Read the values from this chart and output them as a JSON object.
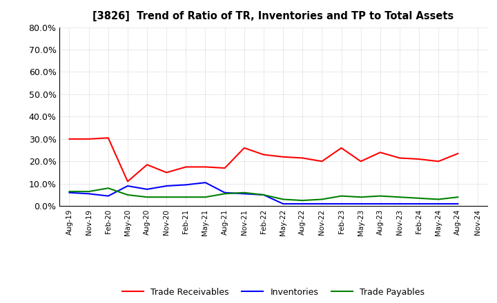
{
  "title": "[3826]  Trend of Ratio of TR, Inventories and TP to Total Assets",
  "labels": [
    "Aug-19",
    "Nov-19",
    "Feb-20",
    "May-20",
    "Aug-20",
    "Nov-20",
    "Feb-21",
    "May-21",
    "Aug-21",
    "Nov-21",
    "Feb-22",
    "May-22",
    "Aug-22",
    "Nov-22",
    "Feb-23",
    "May-23",
    "Aug-23",
    "Nov-23",
    "Feb-24",
    "May-24",
    "Aug-24",
    "Nov-24"
  ],
  "trade_receivables": [
    0.3,
    0.3,
    0.305,
    0.11,
    0.185,
    0.15,
    0.175,
    0.175,
    0.17,
    0.26,
    0.23,
    0.22,
    0.215,
    0.2,
    0.26,
    0.2,
    0.24,
    0.215,
    0.21,
    0.2,
    0.235,
    null
  ],
  "inventories": [
    0.06,
    0.055,
    0.045,
    0.09,
    0.075,
    0.09,
    0.095,
    0.105,
    0.06,
    0.055,
    0.05,
    0.01,
    0.01,
    0.01,
    0.01,
    0.01,
    0.01,
    0.01,
    0.01,
    0.01,
    0.01,
    null
  ],
  "trade_payables": [
    0.065,
    0.065,
    0.08,
    0.05,
    0.04,
    0.04,
    0.04,
    0.04,
    0.055,
    0.06,
    0.05,
    0.03,
    0.025,
    0.03,
    0.045,
    0.04,
    0.045,
    0.04,
    0.035,
    0.03,
    0.04,
    null
  ],
  "tr_color": "#ff0000",
  "inv_color": "#0000ff",
  "tp_color": "#008000",
  "ylim": [
    0.0,
    0.8
  ],
  "yticks": [
    0.0,
    0.1,
    0.2,
    0.3,
    0.4,
    0.5,
    0.6,
    0.7,
    0.8
  ],
  "background_color": "#ffffff",
  "grid_color": "#aaaaaa",
  "legend_labels": [
    "Trade Receivables",
    "Inventories",
    "Trade Payables"
  ]
}
